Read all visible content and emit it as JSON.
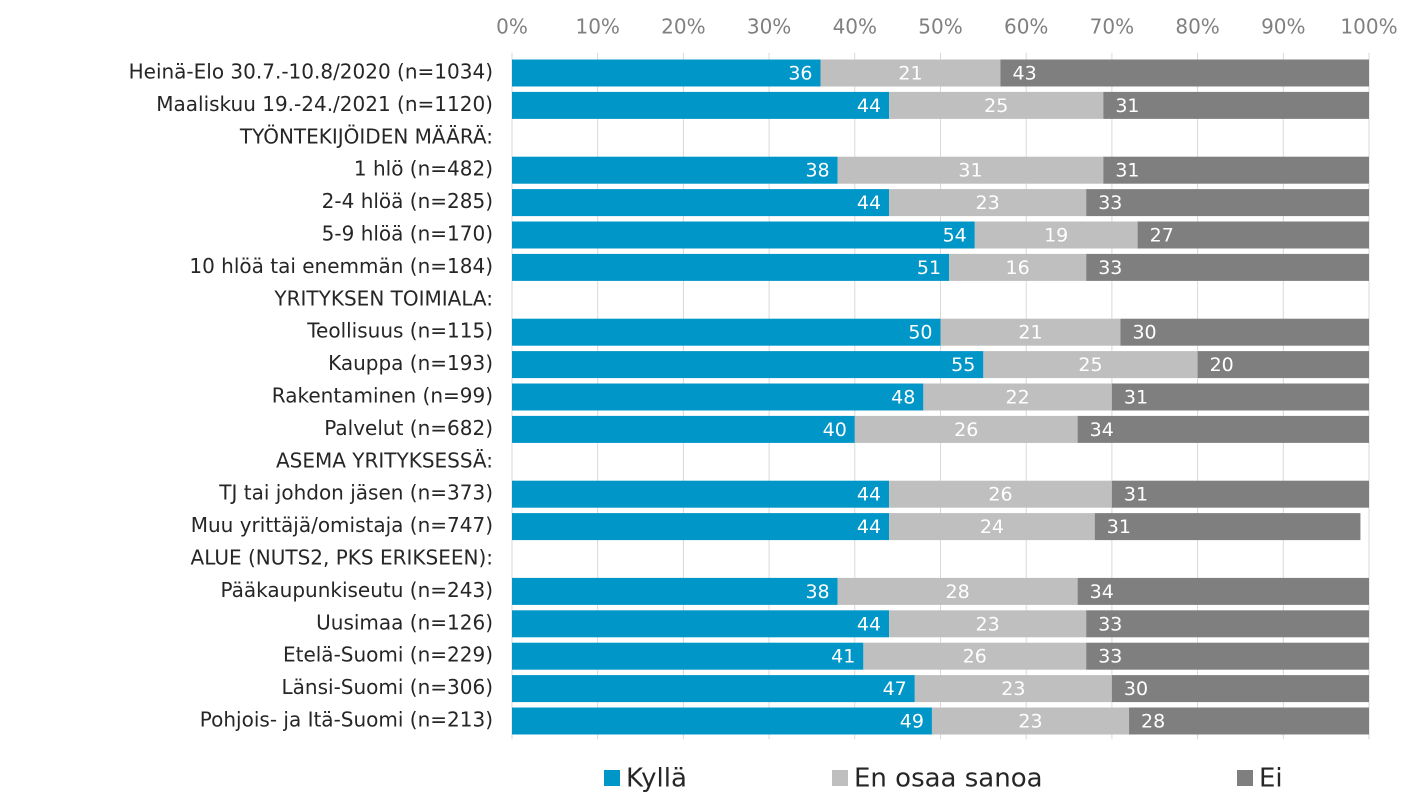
{
  "chart_data": {
    "type": "stacked_barh",
    "categories": [
      "Heinä-Elo 30.7.-10.8/2020 (n=1034)",
      "Maaliskuu 19.-24./2021 (n=1120)",
      "TYÖNTEKIJÖIDEN MÄÄRÄ:",
      "1 hlö (n=482)",
      "2-4 hlöä (n=285)",
      "5-9 hlöä (n=170)",
      "10 hlöä tai enemmän (n=184)",
      "YRITYKSEN TOIMIALA:",
      "Teollisuus (n=115)",
      "Kauppa (n=193)",
      "Rakentaminen (n=99)",
      "Palvelut (n=682)",
      "ASEMA YRITYKSESSÄ:",
      "TJ tai johdon jäsen (n=373)",
      "Muu yrittäjä/omistaja (n=747)",
      "ALUE (NUTS2, PKS ERIKSEEN):",
      "Pääkaupunkiseutu (n=243)",
      "Uusimaa (n=126)",
      "Etelä-Suomi (n=229)",
      "Länsi-Suomi (n=306)",
      "Pohjois- ja Itä-Suomi (n=213)"
    ],
    "series": [
      {
        "name": "Kyllä",
        "color": "#0096c8",
        "values": [
          36,
          44,
          null,
          38,
          44,
          54,
          51,
          null,
          50,
          55,
          48,
          40,
          null,
          44,
          44,
          null,
          38,
          44,
          41,
          47,
          49
        ]
      },
      {
        "name": "En osaa sanoa",
        "color": "#bfbfbf",
        "values": [
          21,
          25,
          null,
          31,
          23,
          19,
          16,
          null,
          21,
          25,
          22,
          26,
          null,
          26,
          24,
          null,
          28,
          23,
          26,
          23,
          23
        ]
      },
      {
        "name": "Ei",
        "color": "#7f7f7f",
        "values": [
          43,
          31,
          null,
          31,
          33,
          27,
          33,
          null,
          30,
          20,
          31,
          34,
          null,
          31,
          31,
          null,
          34,
          33,
          33,
          30,
          28
        ]
      }
    ],
    "xlim": [
      0,
      100
    ],
    "xticks": [
      {
        "value": 0,
        "label": "0%"
      },
      {
        "value": 10,
        "label": "10%"
      },
      {
        "value": 20,
        "label": "20%"
      },
      {
        "value": 30,
        "label": "30%"
      },
      {
        "value": 40,
        "label": "40%"
      },
      {
        "value": 50,
        "label": "50%"
      },
      {
        "value": 60,
        "label": "60%"
      },
      {
        "value": 70,
        "label": "70%"
      },
      {
        "value": 80,
        "label": "80%"
      },
      {
        "value": 90,
        "label": "90%"
      },
      {
        "value": 100,
        "label": "100%"
      }
    ],
    "grid": true,
    "legend": "bottom"
  }
}
